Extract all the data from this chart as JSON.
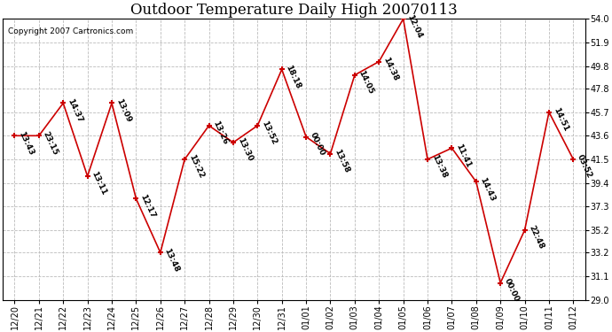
{
  "title": "Outdoor Temperature Daily High 20070113",
  "copyright": "Copyright 2007 Cartronics.com",
  "dates": [
    "12/20",
    "12/21",
    "12/22",
    "12/23",
    "12/24",
    "12/25",
    "12/26",
    "12/27",
    "12/28",
    "12/29",
    "12/30",
    "12/31",
    "01/01",
    "01/02",
    "01/03",
    "01/04",
    "01/05",
    "01/06",
    "01/07",
    "01/08",
    "01/09",
    "01/10",
    "01/11",
    "01/12"
  ],
  "values": [
    43.6,
    43.6,
    46.5,
    40.0,
    46.5,
    38.0,
    33.2,
    41.5,
    44.5,
    43.0,
    44.5,
    49.5,
    43.5,
    42.0,
    49.0,
    50.2,
    54.0,
    41.5,
    42.5,
    39.5,
    30.5,
    35.2,
    45.7,
    41.5
  ],
  "labels": [
    "13:43",
    "23:15",
    "14:37",
    "13:11",
    "13:09",
    "12:17",
    "13:48",
    "15:22",
    "13:26",
    "13:30",
    "13:52",
    "18:18",
    "00:00",
    "13:58",
    "14:05",
    "14:38",
    "12:04",
    "13:38",
    "11:41",
    "14:43",
    "00:00",
    "22:48",
    "14:51",
    "03:52"
  ],
  "ylim": [
    29.0,
    54.0
  ],
  "yticks": [
    29.0,
    31.1,
    33.2,
    35.2,
    37.3,
    39.4,
    41.5,
    43.6,
    45.7,
    47.8,
    49.8,
    51.9,
    54.0
  ],
  "line_color": "#cc0000",
  "marker_color": "#cc0000",
  "bg_color": "#ffffff",
  "plot_bg_color": "#ffffff",
  "grid_color": "#bbbbbb",
  "title_fontsize": 12,
  "label_fontsize": 6.5,
  "tick_fontsize": 7,
  "copyright_fontsize": 6.5
}
